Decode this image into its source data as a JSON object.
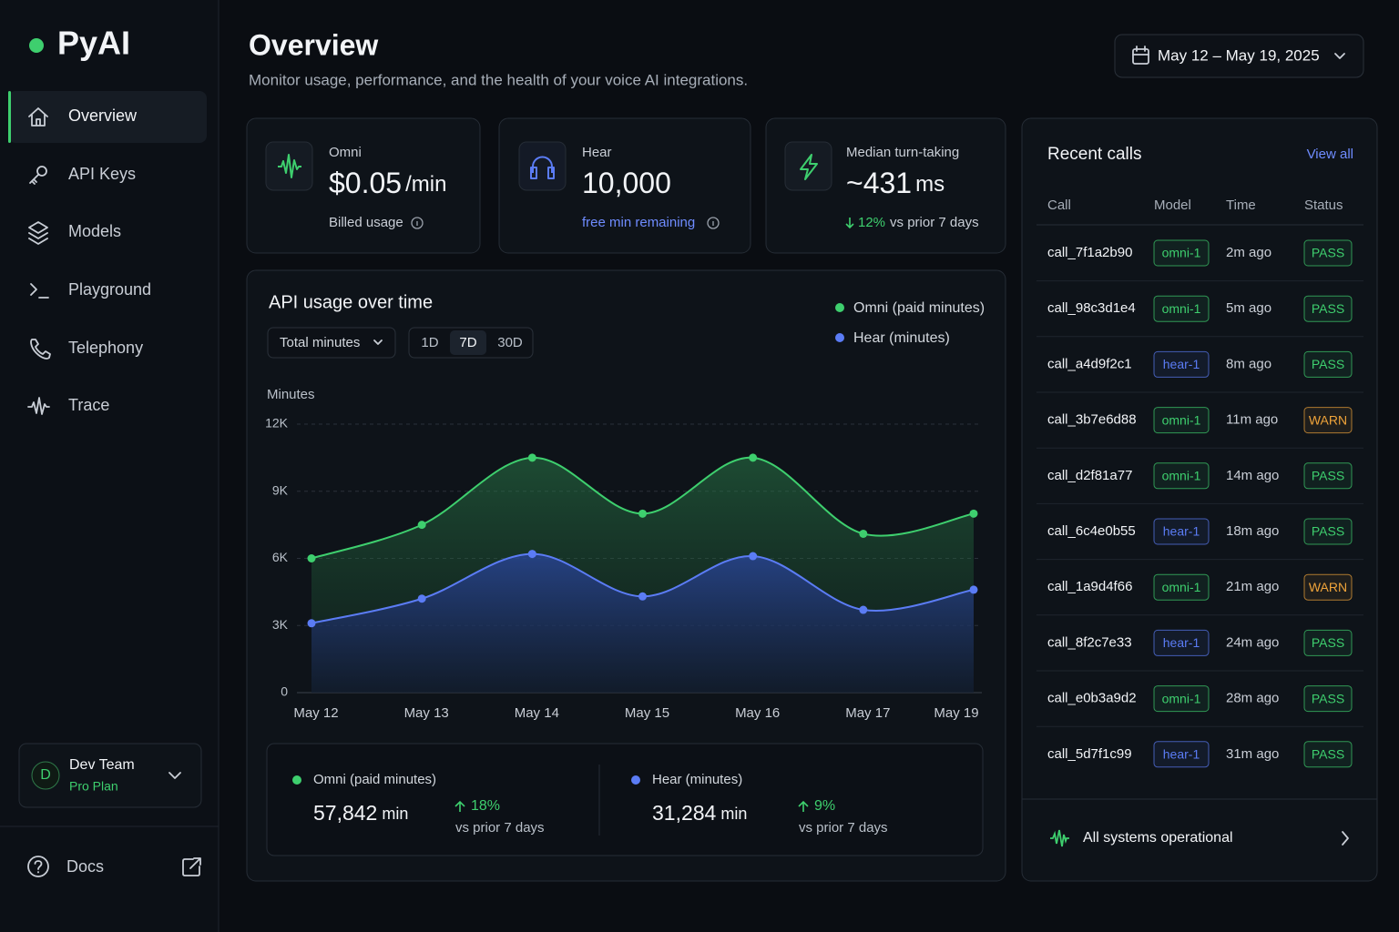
{
  "sidebar": {
    "brand": "PyAI",
    "nav": [
      "Overview",
      "API Keys",
      "Models",
      "Playground",
      "Telephony",
      "Trace"
    ],
    "active_nav": 0,
    "team": {
      "initial": "D",
      "name": "Dev Team",
      "plan": "Pro Plan"
    },
    "docs": "Docs"
  },
  "header": {
    "title": "Overview",
    "subtitle": "Monitor usage, performance, and the health of your voice AI integrations.",
    "date_range": "May 12 – May 19, 2025"
  },
  "stats": [
    {
      "label": "Omni",
      "value": "$0.05",
      "unit": "/min",
      "note": "Billed usage"
    },
    {
      "label": "Hear",
      "value": "10,000",
      "note": "free min remaining"
    },
    {
      "label": "Median turn-taking",
      "value": "~431",
      "unit": "ms",
      "change": "12%",
      "note": "vs prior 7 days"
    }
  ],
  "chart_data": {
    "type": "area",
    "title": "API usage over time",
    "metric": "Total minutes",
    "ranges": [
      "1D",
      "7D",
      "30D"
    ],
    "active_range": 1,
    "y_label": "Minutes",
    "categories": [
      "May 12",
      "May 13",
      "May 14",
      "May 15",
      "May 16",
      "May 17",
      "May 19"
    ],
    "series": [
      {
        "name": "Omni (paid minutes)",
        "color": "#3ecf6e",
        "values": [
          6000,
          7500,
          10500,
          8000,
          10500,
          7100,
          8000
        ]
      },
      {
        "name": "Hear (minutes)",
        "color": "#5b7cf5",
        "values": [
          3100,
          4200,
          6200,
          4300,
          6100,
          3700,
          4600
        ]
      }
    ],
    "ylim": [
      0,
      12000
    ],
    "yticks": [
      0,
      {
        "value": 3000,
        "label": "3K"
      },
      {
        "value": 6000,
        "label": "6K"
      },
      {
        "value": 9000,
        "label": "9K"
      },
      {
        "value": 12000,
        "label": "12K"
      }
    ],
    "grid": true,
    "legend": "top-right",
    "summary": [
      {
        "value": "57,842",
        "unit": "min",
        "change": "18%",
        "note": "vs prior 7 days"
      },
      {
        "value": "31,284",
        "unit": "min",
        "change": "9%",
        "note": "vs prior 7 days"
      }
    ]
  },
  "recent_calls": {
    "title": "Recent calls",
    "link": "View all",
    "columns": [
      "Call",
      "Model",
      "Time",
      "Status"
    ],
    "rows": [
      [
        "call_7f1a2b90",
        "omni-1",
        "2m ago",
        "PASS"
      ],
      [
        "call_98c3d1e4",
        "omni-1",
        "5m ago",
        "PASS"
      ],
      [
        "call_a4d9f2c1",
        "hear-1",
        "8m ago",
        "PASS"
      ],
      [
        "call_3b7e6d88",
        "omni-1",
        "11m ago",
        "WARN"
      ],
      [
        "call_d2f81a77",
        "omni-1",
        "14m ago",
        "PASS"
      ],
      [
        "call_6c4e0b55",
        "hear-1",
        "18m ago",
        "PASS"
      ],
      [
        "call_1a9d4f66",
        "omni-1",
        "21m ago",
        "WARN"
      ],
      [
        "call_8f2c7e33",
        "hear-1",
        "24m ago",
        "PASS"
      ],
      [
        "call_e0b3a9d2",
        "omni-1",
        "28m ago",
        "PASS"
      ],
      [
        "call_5d7f1c99",
        "hear-1",
        "31m ago",
        "PASS"
      ]
    ],
    "badge_colors": {
      "omni-1": "#3ecf6e",
      "hear-1": "#5b7cf5",
      "PASS": "#3ecf6e",
      "WARN": "#f0a43a"
    },
    "footer": "All systems operational"
  }
}
